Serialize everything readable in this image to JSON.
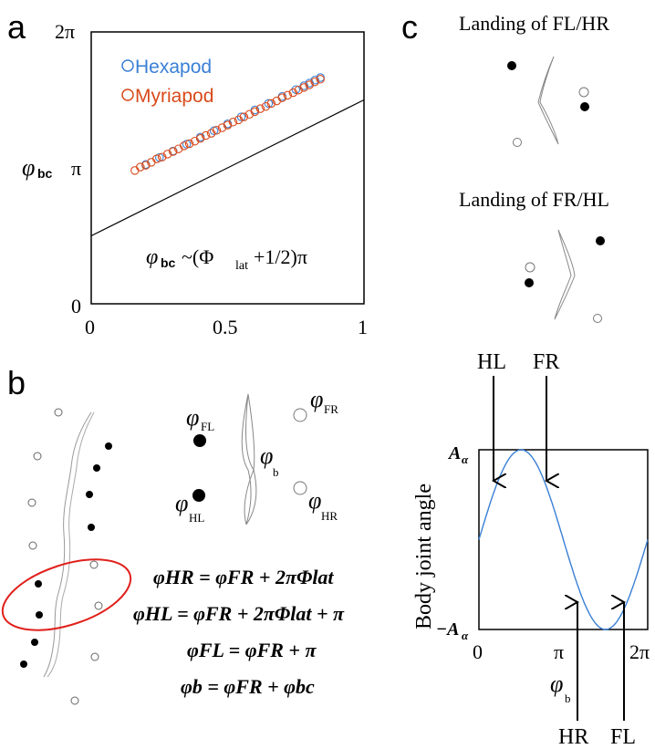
{
  "panels": {
    "a": {
      "label": "a",
      "ytick_top": "2π",
      "ytick_mid": "π",
      "ytick_bottom": "0",
      "xtick_0": "0",
      "xtick_mid": "0.5",
      "xtick_1": "1",
      "ylabel_sym": "φ",
      "ylabel_sub": "bc",
      "legend": [
        {
          "name": "Hexapod",
          "color": "#3a7fd5"
        },
        {
          "name": "Myriapod",
          "color": "#d84a1b"
        }
      ],
      "formula_sym": "φ",
      "formula_sub": "bc",
      "formula_main": "~(Φ",
      "formula_sub2": "lat",
      "formula_tail": "+1/2)π"
    },
    "b": {
      "label": "b",
      "phi_FL": "FL",
      "phi_FR": "FR",
      "phi_HL": "HL",
      "phi_HR": "HR",
      "phi_b": "b",
      "phi": "φ",
      "equations": [
        "φHR = φFR + 2πΦlat",
        "φHL = φFR + 2πΦlat + π",
        "φFL = φFR + π",
        "φb = φFR + φbc"
      ]
    },
    "c": {
      "label": "c",
      "title1": "Landing of FL/HR",
      "title2": "Landing of FR/HL",
      "arrow_top_left": "HL",
      "arrow_top_right": "FR",
      "arrow_bottom_left": "HR",
      "arrow_bottom_right": "FL",
      "ylabel": "Body joint angle",
      "ytick_top": "A",
      "ytick_bottom": "−A",
      "ytick_sub": "α",
      "xtick_0": "0",
      "xtick_mid": "π",
      "xtick_2": "2π",
      "xlabel_sym": "φ",
      "xlabel_sub": "b",
      "curve_color": "#3a7fd5"
    }
  },
  "chart_data": [
    {
      "type": "scatter",
      "panel": "a",
      "xlim": [
        0,
        1
      ],
      "ylim": [
        0,
        6.2832
      ],
      "ytick_labels": [
        "0",
        "π",
        "2π"
      ],
      "xtick_labels": [
        "0",
        "0.5",
        "1"
      ],
      "series": [
        {
          "name": "Hexapod",
          "color": "#3a7fd5",
          "x": [
            0.2,
            0.25,
            0.3,
            0.35,
            0.4,
            0.45,
            0.5,
            0.55,
            0.6,
            0.65,
            0.7,
            0.75,
            0.78,
            0.8,
            0.82,
            0.84
          ],
          "y": [
            3.22,
            3.38,
            3.53,
            3.69,
            3.85,
            4.0,
            4.16,
            4.32,
            4.48,
            4.63,
            4.79,
            4.95,
            5.04,
            5.1,
            5.17,
            5.23
          ]
        },
        {
          "name": "Myriapod",
          "color": "#d84a1b",
          "x": [
            0.16,
            0.18,
            0.2,
            0.22,
            0.24,
            0.26,
            0.28,
            0.3,
            0.32,
            0.34,
            0.36,
            0.38,
            0.4,
            0.42,
            0.44,
            0.46,
            0.48,
            0.5,
            0.52,
            0.54,
            0.56,
            0.58,
            0.6,
            0.62,
            0.64,
            0.66,
            0.68,
            0.7,
            0.72,
            0.74,
            0.76,
            0.78,
            0.8,
            0.82,
            0.84
          ],
          "y": [
            3.08,
            3.16,
            3.2,
            3.27,
            3.35,
            3.39,
            3.46,
            3.52,
            3.58,
            3.65,
            3.7,
            3.76,
            3.82,
            3.89,
            3.94,
            4.01,
            4.07,
            4.13,
            4.2,
            4.25,
            4.32,
            4.38,
            4.44,
            4.51,
            4.56,
            4.63,
            4.69,
            4.76,
            4.82,
            4.88,
            4.94,
            5.0,
            5.06,
            5.13,
            5.19
          ]
        }
      ],
      "fit_line": {
        "slope": 3.1416,
        "intercept": 1.5708
      }
    },
    {
      "type": "line",
      "panel": "c",
      "xlim": [
        0,
        6.2832
      ],
      "ylim": [
        -1,
        1
      ],
      "xtick_labels": [
        "0",
        "π",
        "2π"
      ],
      "ytick_labels": [
        "−Aα",
        "Aα"
      ],
      "series": [
        {
          "name": "",
          "function": "sin",
          "amplitude": 1,
          "color": "#3a7fd5"
        }
      ],
      "arrows": [
        {
          "label": "HL",
          "x": 0.55,
          "from": "top"
        },
        {
          "label": "FR",
          "x": 2.6,
          "from": "top"
        },
        {
          "label": "HR",
          "x": 3.6,
          "from": "bottom"
        },
        {
          "label": "FL",
          "x": 5.8,
          "from": "bottom"
        }
      ]
    }
  ]
}
